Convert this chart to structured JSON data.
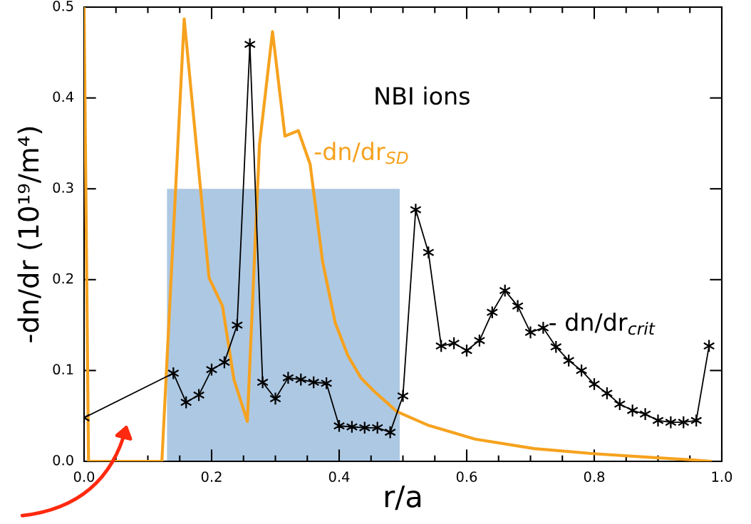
{
  "chart_data": {
    "type": "line",
    "title": "NBI ions",
    "xlabel": "r/a",
    "ylabel": "-dn/dr (10¹⁹/m⁴)",
    "xlim": [
      0,
      1
    ],
    "xticks": [
      {
        "value": 0,
        "label": "0.0"
      },
      0.2,
      0.4,
      0.6,
      0.8,
      {
        "value": 1,
        "label": "1.0"
      }
    ],
    "ylim": [
      0,
      0.5
    ],
    "yticks": [
      {
        "value": 0,
        "label": "0.0"
      },
      0.1,
      0.2,
      0.3,
      0.4,
      0.5
    ],
    "grid": false,
    "line_style": "solid",
    "series": [
      {
        "type": "area",
        "color": "#adc8e3",
        "x": [
          0.13,
          0.495
        ],
        "values": [
          0.3,
          0.3
        ]
      },
      {
        "name": "-dn/dr$_{SD}$",
        "color": "#f6a21e",
        "marker": "none",
        "x": [
          0.0,
          0.007,
          0.122,
          0.157,
          0.196,
          0.217,
          0.235,
          0.256,
          0.275,
          0.2955,
          0.315,
          0.336,
          0.3545,
          0.374,
          0.394,
          0.414,
          0.434,
          0.455,
          0.476,
          0.49,
          0.5385,
          0.613,
          0.706,
          0.799,
          0.892,
          0.955,
          0.982
        ],
        "values": [
          0.5,
          0.0,
          0.0,
          0.487,
          0.202,
          0.171,
          0.09,
          0.044,
          0.348,
          0.473,
          0.358,
          0.364,
          0.327,
          0.22,
          0.152,
          0.116,
          0.092,
          0.077,
          0.064,
          0.055,
          0.04,
          0.0245,
          0.014,
          0.0084,
          0.0042,
          0.0016,
          0.0
        ]
      },
      {
        "name": "- dn/dr$_{crit}$",
        "color": "#000000",
        "marker": "cross",
        "x": [
          0.0,
          0.14,
          0.16,
          0.18,
          0.2,
          0.22,
          0.24,
          0.26,
          0.28,
          0.3,
          0.32,
          0.34,
          0.36,
          0.38,
          0.4,
          0.42,
          0.44,
          0.46,
          0.48,
          0.5,
          0.52,
          0.54,
          0.56,
          0.58,
          0.6,
          0.62,
          0.64,
          0.66,
          0.68,
          0.7,
          0.72,
          0.74,
          0.76,
          0.78,
          0.8,
          0.82,
          0.84,
          0.86,
          0.88,
          0.9,
          0.92,
          0.94,
          0.96,
          0.98
        ],
        "values": [
          0.048,
          0.097,
          0.065,
          0.073,
          0.101,
          0.109,
          0.15,
          0.459,
          0.087,
          0.069,
          0.092,
          0.09,
          0.087,
          0.086,
          0.039,
          0.038,
          0.037,
          0.037,
          0.032,
          0.072,
          0.277,
          0.23,
          0.127,
          0.13,
          0.122,
          0.133,
          0.164,
          0.188,
          0.171,
          0.142,
          0.147,
          0.126,
          0.111,
          0.1,
          0.085,
          0.075,
          0.063,
          0.056,
          0.052,
          0.045,
          0.043,
          0.043,
          0.045,
          0.127
        ]
      }
    ]
  }
}
